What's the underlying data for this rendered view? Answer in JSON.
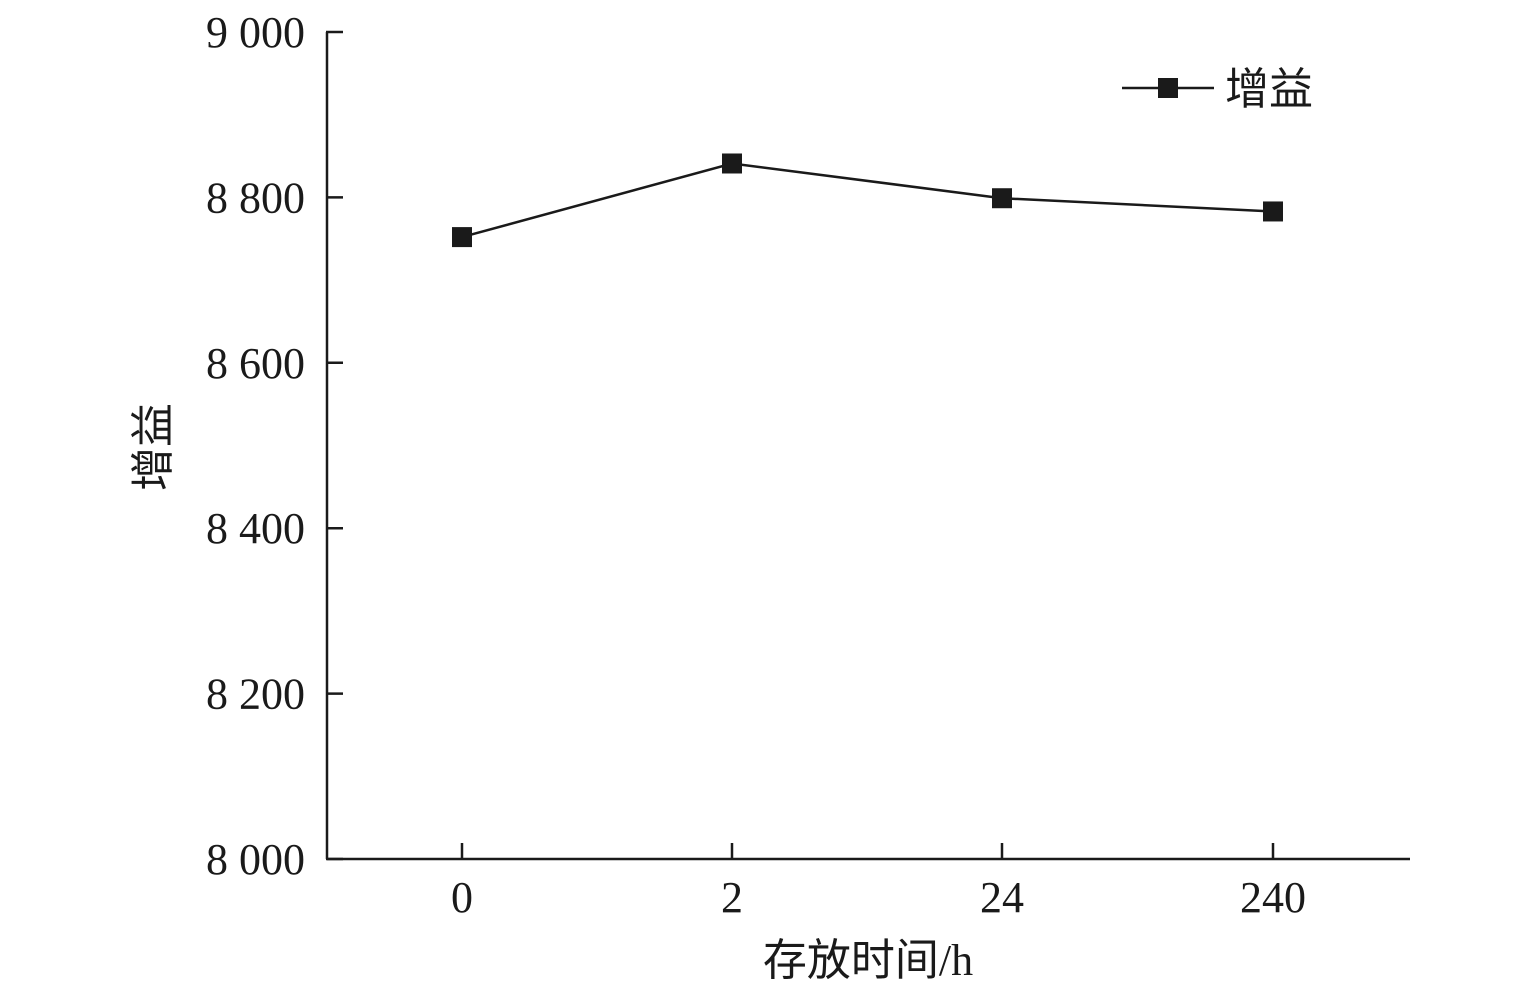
{
  "chart_data": {
    "type": "line",
    "categories": [
      "0",
      "2",
      "24",
      "240"
    ],
    "series": [
      {
        "name": "增益",
        "values": [
          8752,
          8841,
          8799,
          8783
        ]
      }
    ],
    "xlabel": "存放时间/h",
    "ylabel": "增益",
    "ylim": [
      8000,
      9000
    ],
    "yticks": [
      8000,
      8200,
      8400,
      8600,
      8800,
      9000
    ],
    "ytick_labels": [
      "8 000",
      "8 200",
      "8 400",
      "8 600",
      "8 800",
      "9 000"
    ],
    "grid": false,
    "legend": "top-right",
    "marker": "square",
    "line_color": "#1a1a1a"
  }
}
